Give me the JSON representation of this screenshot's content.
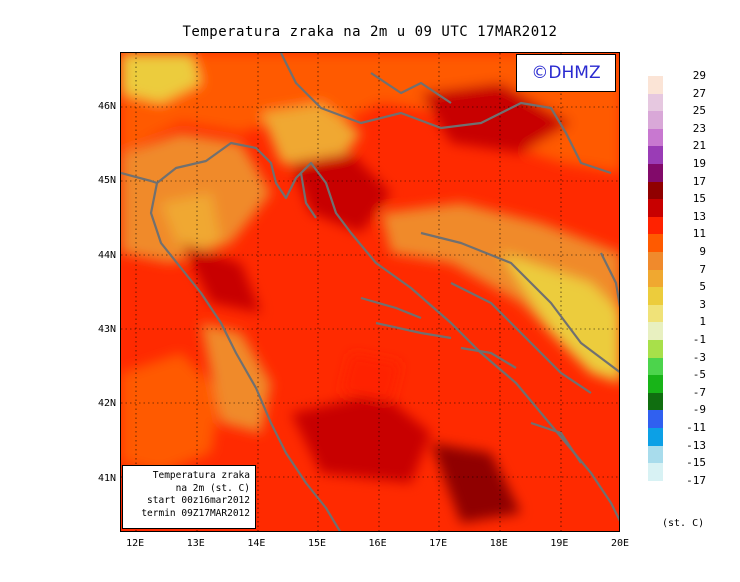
{
  "header": {
    "title": "Temperatura zraka na 2m u 09 UTC 17MAR2012"
  },
  "copyright": {
    "label": "©DHMZ"
  },
  "info_box": {
    "lines": [
      "Temperatura zraka",
      "na 2m (st. C)",
      "start 00z16mar2012",
      "termin 09Z17MAR2012"
    ]
  },
  "map": {
    "lat_labels": [
      "46N",
      "45N",
      "44N",
      "43N",
      "42N",
      "41N"
    ],
    "lon_labels": [
      "12E",
      "13E",
      "14E",
      "15E",
      "16E",
      "17E",
      "18E",
      "19E",
      "20E"
    ],
    "lat_values": [
      46,
      45,
      44,
      43,
      42,
      41
    ],
    "lon_values": [
      12,
      13,
      14,
      15,
      16,
      17,
      18,
      19,
      20
    ],
    "lat_range": [
      40.3,
      46.75
    ],
    "lon_range": [
      11.75,
      20
    ],
    "grid": "dotted",
    "colors": {
      "coastline": "#707070",
      "background": "#ff2a00"
    }
  },
  "legend": {
    "unit": "(st. C)",
    "items": [
      {
        "label": "29",
        "color": "#fbe4d6"
      },
      {
        "label": "27",
        "color": "#e6c8e0"
      },
      {
        "label": "25",
        "color": "#d9a8d8"
      },
      {
        "label": "23",
        "color": "#c878d0"
      },
      {
        "label": "21",
        "color": "#9a3cb6"
      },
      {
        "label": "19",
        "color": "#820a6a"
      },
      {
        "label": "17",
        "color": "#900000"
      },
      {
        "label": "15",
        "color": "#c80000"
      },
      {
        "label": "13",
        "color": "#ff2200"
      },
      {
        "label": "11",
        "color": "#ff5a00"
      },
      {
        "label": "9",
        "color": "#f08a2c"
      },
      {
        "label": "7",
        "color": "#f0a830"
      },
      {
        "label": "5",
        "color": "#eccc3c"
      },
      {
        "label": "3",
        "color": "#f0e278"
      },
      {
        "label": "1",
        "color": "#e8f0c0"
      },
      {
        "label": "-1",
        "color": "#a8e04a"
      },
      {
        "label": "-3",
        "color": "#4cd44c"
      },
      {
        "label": "-5",
        "color": "#18b418"
      },
      {
        "label": "-7",
        "color": "#106e10"
      },
      {
        "label": "-9",
        "color": "#3060f0"
      },
      {
        "label": "-11",
        "color": "#0ca0e6"
      },
      {
        "label": "-13",
        "color": "#a8dcec"
      },
      {
        "label": "-15",
        "color": "#d8f2f4"
      },
      {
        "label": "-17",
        "color": "#ffffff"
      }
    ]
  }
}
